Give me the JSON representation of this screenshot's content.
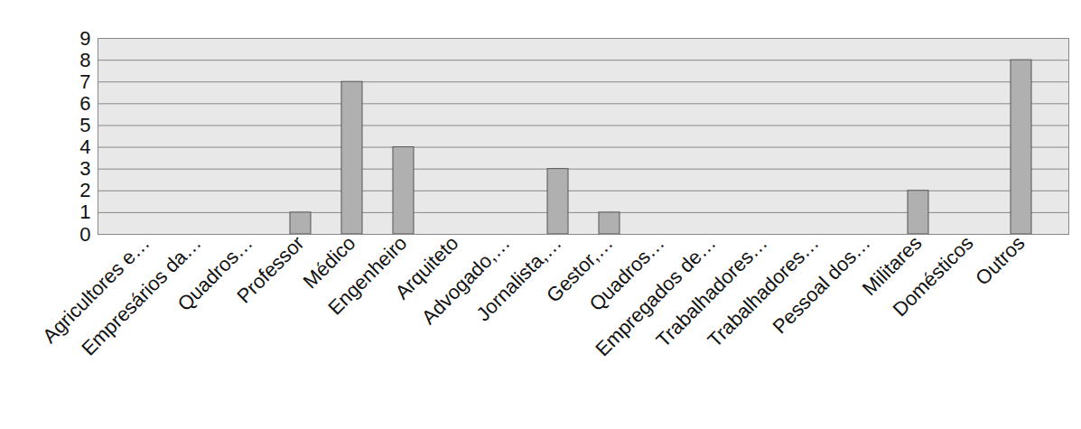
{
  "chart_data": {
    "type": "bar",
    "categories": [
      "Agricultores e…",
      "Empresários da…",
      "Quadros…",
      "Professor",
      "Médico",
      "Engenheiro",
      "Arquiteto",
      "Advogado,…",
      "Jornalista,…",
      "Gestor,…",
      "Quadros…",
      "Empregados de…",
      "Trabalhadores…",
      "Trabalhadores…",
      "Pessoal dos…",
      "Militares",
      "Domésticos",
      "Outros"
    ],
    "values": [
      0,
      0,
      0,
      1,
      7,
      4,
      0,
      0,
      3,
      1,
      0,
      0,
      0,
      0,
      0,
      2,
      0,
      8
    ],
    "color": "#b0b0b0",
    "ylim": [
      0,
      9
    ],
    "yticks": [
      0,
      1,
      2,
      3,
      4,
      5,
      6,
      7,
      8,
      9
    ],
    "grid": true
  }
}
